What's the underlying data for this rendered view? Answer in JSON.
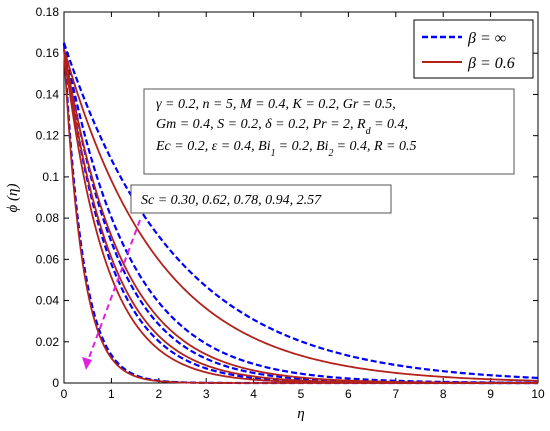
{
  "chart_data": {
    "type": "line",
    "xlabel": "η",
    "ylabel": "ϕ (η)",
    "xlim": [
      0,
      10
    ],
    "ylim": [
      0,
      0.18
    ],
    "x_ticks": [
      0,
      1,
      2,
      3,
      4,
      5,
      6,
      7,
      8,
      9,
      10
    ],
    "y_ticks": [
      0,
      0.02,
      0.04,
      0.06,
      0.08,
      0.1,
      0.12,
      0.14,
      0.16,
      0.18
    ],
    "legend_position": "top-right",
    "legend": [
      {
        "label": "β = ∞",
        "color": "#0000ff",
        "style": "dashed"
      },
      {
        "label": "β = 0.6",
        "color": "#b2221b",
        "style": "solid"
      }
    ],
    "params_lines": [
      "γ = 0.2, n = 5, M = 0.4, K = 0.2, Gr = 0.5,",
      "Gm = 0.4, S = 0.2, δ = 0.2, Pr = 2, R",
      "Ec = 0.2, ε = 0.4, Bi",
      "= 0.2, Bi",
      "= 0.4, R = 0.5"
    ],
    "params_subscripts": [
      "d",
      "1",
      "2"
    ],
    "params_tail_2": " = 0.4,",
    "sc_annotation": "Sc = 0.30, 0.62, 0.78, 0.94, 2.57",
    "sc_values": [
      0.3,
      0.62,
      0.78,
      0.94,
      2.57
    ],
    "series": [
      {
        "name": "β = ∞",
        "sc": 0.3,
        "y0": 0.165,
        "decay": 0.42
      },
      {
        "name": "β = ∞",
        "sc": 0.62,
        "y0": 0.165,
        "decay": 0.72
      },
      {
        "name": "β = ∞",
        "sc": 0.78,
        "y0": 0.165,
        "decay": 0.88
      },
      {
        "name": "β = ∞",
        "sc": 0.94,
        "y0": 0.165,
        "decay": 1.05
      },
      {
        "name": "β = ∞",
        "sc": 2.57,
        "y0": 0.165,
        "decay": 2.5
      },
      {
        "name": "β = 0.6",
        "sc": 0.3,
        "y0": 0.162,
        "decay": 0.5
      },
      {
        "name": "β = 0.6",
        "sc": 0.62,
        "y0": 0.162,
        "decay": 0.82
      },
      {
        "name": "β = 0.6",
        "sc": 0.78,
        "y0": 0.162,
        "decay": 0.98
      },
      {
        "name": "β = 0.6",
        "sc": 0.94,
        "y0": 0.162,
        "decay": 1.15
      },
      {
        "name": "β = 0.6",
        "sc": 2.57,
        "y0": 0.162,
        "decay": 2.6
      }
    ]
  }
}
